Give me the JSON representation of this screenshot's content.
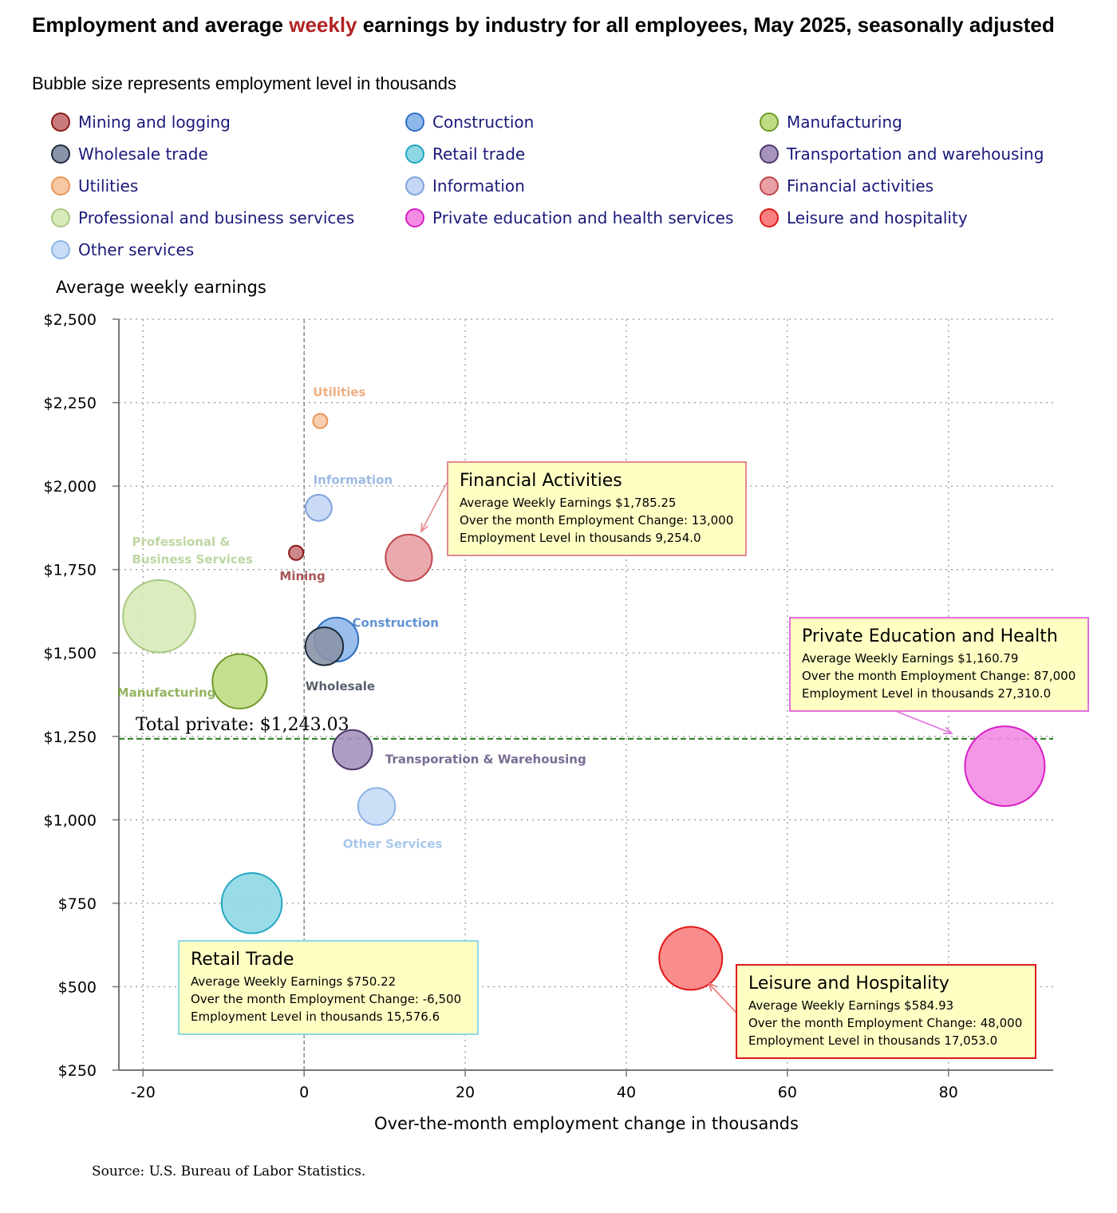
{
  "header": {
    "title_pre": "Employment and average ",
    "title_highlight": "weekly",
    "title_post": " earnings by industry for all employees, May 2025, seasonally adjusted",
    "subtitle": "Bubble size represents employment level in thousands"
  },
  "legend": [
    {
      "label": "Mining and logging",
      "fill": "#c97a7a",
      "stroke": "#8b1a1a"
    },
    {
      "label": "Construction",
      "fill": "#8fb8ea",
      "stroke": "#2e6fc4"
    },
    {
      "label": "Manufacturing",
      "fill": "#bfdc84",
      "stroke": "#6f9a2a"
    },
    {
      "label": "Wholesale trade",
      "fill": "#8a94a8",
      "stroke": "#1e2a3c"
    },
    {
      "label": "Retail trade",
      "fill": "#8ed8e4",
      "stroke": "#22a6c0"
    },
    {
      "label": "Transportation and warehousing",
      "fill": "#a694bc",
      "stroke": "#4e3a6e"
    },
    {
      "label": "Utilities",
      "fill": "#f8c8a4",
      "stroke": "#e8965a"
    },
    {
      "label": "Information",
      "fill": "#c4d6f4",
      "stroke": "#7ea2da"
    },
    {
      "label": "Financial activities",
      "fill": "#e8a0a4",
      "stroke": "#c0474f"
    },
    {
      "label": "Professional and business services",
      "fill": "#d8eab8",
      "stroke": "#a8c884"
    },
    {
      "label": "Private education and health services",
      "fill": "#f48ce4",
      "stroke": "#d81ec4"
    },
    {
      "label": "Leisure and hospitality",
      "fill": "#f88080",
      "stroke": "#e01818"
    },
    {
      "label": "Other services",
      "fill": "#c8dcf6",
      "stroke": "#8cb4e4"
    }
  ],
  "axes": {
    "y_title": "Average weekly earnings",
    "x_title": "Over-the-month employment change in thousands",
    "y_ticks": [
      "$250",
      "$500",
      "$750",
      "$1,000",
      "$1,250",
      "$1,500",
      "$1,750",
      "$2,000",
      "$2,250",
      "$2,500"
    ],
    "x_ticks": [
      "-20",
      "0",
      "20",
      "40",
      "60",
      "80"
    ]
  },
  "reference": {
    "label": "Total private: $1,243.03",
    "value": 1243.03,
    "color": "#1a7a1a"
  },
  "source": "Source: U.S. Bureau of Labor Statistics.",
  "callouts": {
    "financial": {
      "title": "Financial Activities",
      "l1": "Average Weekly Earnings $1,785.25",
      "l2": "Over the month Employment Change:  13,000",
      "l3": "Employment Level in thousands 9,254.0",
      "border": "#e08a8e"
    },
    "education": {
      "title": "Private Education and Health",
      "l1": "Average Weekly Earnings $1,160.79",
      "l2": "Over the month Employment Change:  87,000",
      "l3": "Employment Level in thousands 27,310.0",
      "border": "#e070dc"
    },
    "retail": {
      "title": "Retail Trade",
      "l1": "Average Weekly Earnings $750.22",
      "l2": "Over the month Employment Change:  -6,500",
      "l3": "Employment Level in thousands 15,576.6",
      "border": "#8ed8e4"
    },
    "leisure": {
      "title": "Leisure and Hospitality",
      "l1": "Average Weekly Earnings $584.93",
      "l2": "Over the month Employment Change:  48,000",
      "l3": "Employment Level in thousands 17,053.0",
      "border": "#e01818"
    }
  },
  "chart_data": {
    "type": "scatter",
    "title": "Employment and average weekly earnings by industry for all employees, May 2025, seasonally adjusted",
    "subtitle": "Bubble size represents employment level in thousands",
    "xlabel": "Over-the-month employment change in thousands",
    "ylabel": "Average weekly earnings",
    "xlim": [
      -23,
      93
    ],
    "ylim": [
      250,
      2500
    ],
    "grid": true,
    "legend_position": "top",
    "points": [
      {
        "name": "Mining and logging",
        "label": "Mining",
        "x": -1,
        "y": 1800,
        "size": 610
      },
      {
        "name": "Construction",
        "label": "Construction",
        "x": 4,
        "y": 1540,
        "size": 8300
      },
      {
        "name": "Manufacturing",
        "label": "Manufacturing",
        "x": -8,
        "y": 1415,
        "size": 12750
      },
      {
        "name": "Wholesale trade",
        "label": "Wholesale",
        "x": 2.5,
        "y": 1520,
        "size": 6140
      },
      {
        "name": "Retail trade",
        "label": "",
        "x": -6.5,
        "y": 750.22,
        "size": 15576.6
      },
      {
        "name": "Transportation and warehousing",
        "label": "Transporation & Warehousing",
        "x": 6,
        "y": 1210,
        "size": 6700
      },
      {
        "name": "Utilities",
        "label": "Utilities",
        "x": 2,
        "y": 2195,
        "size": 590
      },
      {
        "name": "Information",
        "label": "Information",
        "x": 1.8,
        "y": 1935,
        "size": 2950
      },
      {
        "name": "Financial activities",
        "label": "",
        "x": 13,
        "y": 1785.25,
        "size": 9254.0
      },
      {
        "name": "Professional and business services",
        "label": "Professional & Business Services",
        "x": -18,
        "y": 1610,
        "size": 22500
      },
      {
        "name": "Private education and health services",
        "label": "",
        "x": 87,
        "y": 1160.79,
        "size": 27310.0
      },
      {
        "name": "Leisure and hospitality",
        "label": "",
        "x": 48,
        "y": 584.93,
        "size": 17053.0
      },
      {
        "name": "Other services",
        "label": "Other Services",
        "x": 9,
        "y": 1040,
        "size": 5900
      }
    ]
  }
}
